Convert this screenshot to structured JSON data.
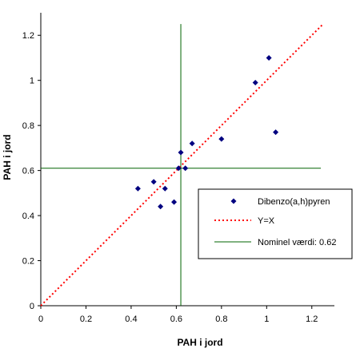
{
  "chart_data": {
    "type": "scatter",
    "xlabel": "PAH i jord",
    "ylabel": "PAH i jord",
    "xlim": [
      0,
      1.3
    ],
    "ylim": [
      0,
      1.3
    ],
    "x_ticks": [
      "0",
      "0.2",
      "0.4",
      "0.6",
      "0.8",
      "1",
      "1.2"
    ],
    "y_ticks": [
      "0",
      "0.2",
      "0.4",
      "0.6",
      "0.8",
      "1",
      "1.2"
    ],
    "grid": false,
    "legend_position": "right",
    "series": [
      {
        "name": "Dibenzo(a,h)pyren",
        "type": "scatter",
        "color": "#000080",
        "marker": "diamond",
        "points": [
          [
            0.43,
            0.52
          ],
          [
            0.5,
            0.55
          ],
          [
            0.53,
            0.44
          ],
          [
            0.55,
            0.52
          ],
          [
            0.59,
            0.46
          ],
          [
            0.61,
            0.61
          ],
          [
            0.62,
            0.68
          ],
          [
            0.64,
            0.61
          ],
          [
            0.67,
            0.72
          ],
          [
            0.8,
            0.74
          ],
          [
            0.95,
            0.99
          ],
          [
            1.01,
            1.1
          ],
          [
            1.04,
            0.77
          ]
        ]
      },
      {
        "name": "Y=X",
        "type": "line",
        "color": "#ff0000",
        "dash": "dotted",
        "points": [
          [
            0,
            0
          ],
          [
            1.25,
            1.25
          ]
        ]
      },
      {
        "name": "Nominel værdi:  0.62",
        "type": "reference",
        "color": "#006400",
        "value": 0.62
      }
    ]
  }
}
